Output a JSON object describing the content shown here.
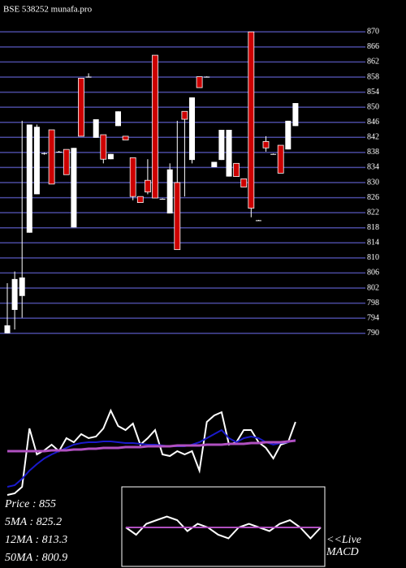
{
  "chart_data": {
    "type": "candlestick",
    "title": "BSE 538252 munafa.pro",
    "ylim": [
      788,
      872
    ],
    "yticks": [
      870,
      866,
      862,
      858,
      854,
      850,
      846,
      842,
      838,
      834,
      830,
      826,
      822,
      818,
      814,
      810,
      806,
      802,
      798,
      794,
      790
    ],
    "grid": true,
    "up_color": "#ffffff",
    "down_color": "#cc0000",
    "candles": [
      [
        790,
        803.3,
        790,
        792.1
      ],
      [
        796.2,
        806.4,
        791,
        804.4
      ],
      [
        799.9,
        846.4,
        794.1,
        804.8
      ],
      [
        816.7,
        845.4,
        816.7,
        845.4
      ],
      [
        826.9,
        845.4,
        826.9,
        844.8
      ],
      [
        837.6,
        838,
        837.4,
        837.8
      ],
      [
        844,
        844,
        829.6,
        829.6
      ],
      [
        838,
        838.4,
        838,
        838.2
      ],
      [
        838.8,
        838.8,
        832.1,
        832.1
      ],
      [
        818.1,
        839.2,
        818.1,
        839.2
      ],
      [
        857.7,
        857.7,
        842.3,
        842.3
      ],
      [
        858,
        859,
        858,
        858.1
      ],
      [
        841.9,
        846.8,
        841.9,
        846.8
      ],
      [
        842.7,
        842.7,
        835.1,
        836.2
      ],
      [
        836.2,
        837.6,
        836.2,
        837.6
      ],
      [
        845,
        848.9,
        845,
        848.9
      ],
      [
        842.3,
        842.3,
        841.3,
        841.3
      ],
      [
        836.6,
        836.6,
        825.3,
        826.3
      ],
      [
        826.3,
        826.3,
        824.7,
        824.7
      ],
      [
        830.6,
        836.2,
        826.9,
        827.5
      ],
      [
        863.8,
        863.8,
        825.9,
        825.9
      ],
      [
        825.6,
        825.8,
        825.6,
        825.7
      ],
      [
        821.8,
        835.1,
        821.8,
        833.5
      ],
      [
        830,
        846.4,
        812.2,
        812.2
      ],
      [
        848.9,
        848.9,
        826.3,
        846.8
      ],
      [
        836,
        852.6,
        835.1,
        852.6
      ],
      [
        858.1,
        858.1,
        855.2,
        855.2
      ],
      [
        858,
        858.2,
        858,
        858.1
      ],
      [
        834.1,
        835.5,
        834.1,
        835.5
      ],
      [
        836,
        844,
        836,
        844
      ],
      [
        831.6,
        844,
        831.6,
        844
      ],
      [
        835.1,
        835.1,
        831.6,
        831.6
      ],
      [
        831,
        831,
        828.8,
        828.8
      ],
      [
        870,
        870,
        820.8,
        823.2
      ],
      [
        819.9,
        820.1,
        819.9,
        820
      ],
      [
        840.9,
        842.3,
        838.2,
        839.2
      ],
      [
        837.5,
        837.7,
        837.5,
        837.6
      ],
      [
        839.9,
        839.9,
        832.5,
        832.5
      ],
      [
        838.8,
        846.4,
        838.8,
        846.4
      ],
      [
        845,
        851.1,
        845,
        851.1
      ]
    ],
    "indicator_ylim": [
      0,
      120
    ],
    "indicators": [
      {
        "name": "Price",
        "color": "#ffffff",
        "values": [
          5,
          7,
          15,
          87,
          55,
          60,
          67,
          59,
          75,
          70,
          80,
          75,
          77,
          87,
          109,
          90,
          85,
          93,
          67,
          75,
          85,
          55,
          53,
          59,
          55,
          59,
          35,
          95,
          103,
          107,
          67,
          70,
          85,
          85,
          70,
          63,
          50,
          67,
          70,
          95
        ]
      },
      {
        "name": "12MA",
        "color": "#1a1acc",
        "values": [
          15,
          17,
          25,
          35,
          43,
          50,
          55,
          59,
          63,
          67,
          69,
          70,
          70,
          71,
          71,
          70,
          69,
          69,
          68,
          67,
          67,
          66,
          65,
          65,
          65,
          67,
          70,
          75,
          80,
          85,
          75,
          70,
          75,
          77,
          75,
          70,
          67,
          69,
          70,
          73
        ]
      },
      {
        "name": "50MA",
        "color": "#b050c0",
        "values": [
          59,
          59,
          59,
          59,
          59,
          59,
          60,
          60,
          60,
          61,
          61,
          62,
          62,
          63,
          63,
          63,
          64,
          64,
          64,
          65,
          65,
          65,
          65,
          66,
          66,
          66,
          66,
          67,
          67,
          67,
          68,
          68,
          68,
          69,
          69,
          70,
          70,
          70,
          71,
          72
        ]
      }
    ],
    "info": [
      "Price   : 855",
      "5MA : 825.2",
      "12MA : 813.3",
      "50MA : 800.9"
    ],
    "macd_label": [
      "<<Live",
      "MACD"
    ],
    "macd_ylim": [
      -10,
      10
    ],
    "macd": [
      {
        "name": "MACD",
        "color": "#ffffff",
        "values": [
          0,
          -2,
          1,
          2,
          3,
          2,
          -1,
          1,
          0,
          -2,
          -3,
          0,
          1,
          0,
          -1,
          1,
          2,
          0,
          -3,
          0
        ]
      },
      {
        "name": "Signal",
        "color": "#b050c0",
        "values": [
          0,
          0,
          0,
          0,
          0,
          0,
          0,
          0,
          0,
          0,
          0,
          0,
          0,
          0,
          0,
          0,
          0,
          0,
          0,
          0
        ]
      }
    ]
  }
}
